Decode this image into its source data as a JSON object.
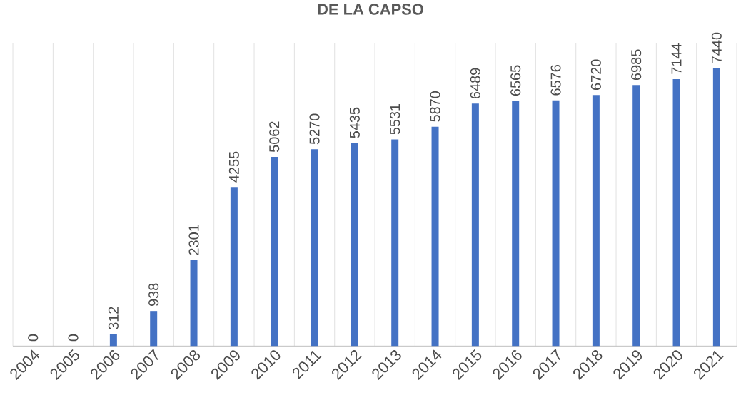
{
  "chart_data": {
    "type": "bar",
    "title": "DE LA CAPSO",
    "categories": [
      "2004",
      "2005",
      "2006",
      "2007",
      "2008",
      "2009",
      "2010",
      "2011",
      "2012",
      "2013",
      "2014",
      "2015",
      "2016",
      "2017",
      "2018",
      "2019",
      "2020",
      "2021"
    ],
    "values": [
      0,
      0,
      312,
      938,
      2301,
      4255,
      5062,
      5270,
      5435,
      5531,
      5870,
      6489,
      6565,
      6576,
      6720,
      6985,
      7144,
      7440
    ],
    "color": "#4472c4",
    "data_labels": true,
    "grid": "x"
  }
}
